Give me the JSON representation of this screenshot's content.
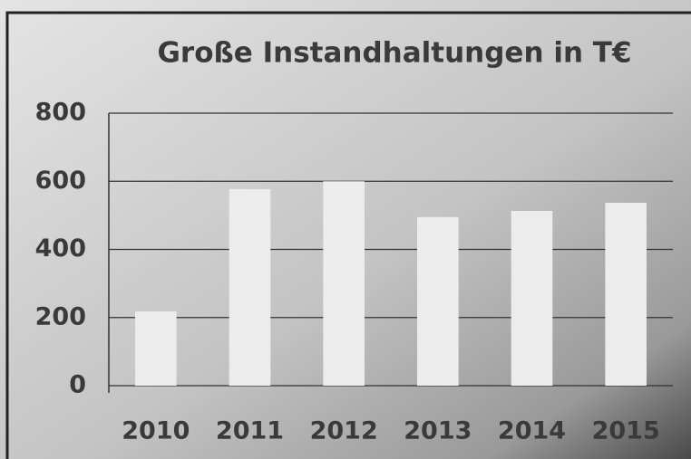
{
  "chart_data": {
    "type": "bar",
    "title": "Große Instandhaltungen in T€",
    "categories": [
      "2010",
      "2011",
      "2012",
      "2013",
      "2014",
      "2015"
    ],
    "values": [
      218,
      577,
      600,
      495,
      513,
      537
    ],
    "color": "#ececec",
    "ylim": [
      0,
      800
    ],
    "yticks": [
      0,
      200,
      400,
      600,
      800
    ],
    "grid": true
  }
}
